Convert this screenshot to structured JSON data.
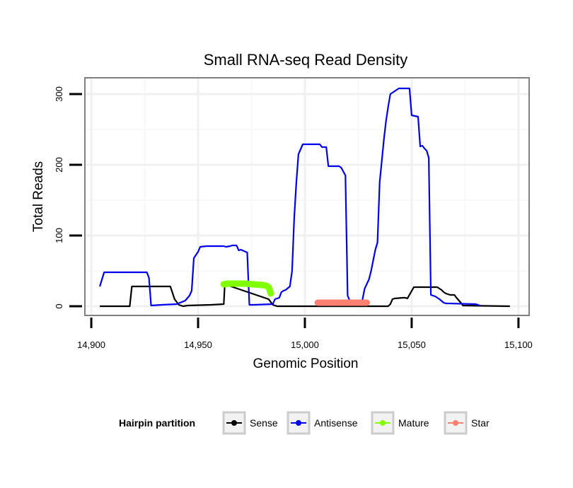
{
  "chart_data": {
    "type": "line",
    "title": "Small RNA-seq Read Density",
    "xlabel": "Genomic Position",
    "ylabel": "Total Reads",
    "xlim": [
      14897,
      15105
    ],
    "ylim": [
      -13,
      323
    ],
    "x_ticks": [
      14900,
      14950,
      15000,
      15050,
      15100
    ],
    "x_tick_labels": [
      "14,900",
      "14,950",
      "15,000",
      "15,050",
      "15,100"
    ],
    "y_ticks": [
      0,
      100,
      200,
      300
    ],
    "y_tick_labels": [
      "0",
      "100",
      "200",
      "300"
    ],
    "grid": true,
    "legend": {
      "title": "Hairpin partition",
      "position": "bottom",
      "entries": [
        {
          "name": "Sense",
          "color": "#000000"
        },
        {
          "name": "Antisense",
          "color": "#0000ee"
        },
        {
          "name": "Mature",
          "color": "#7fff00"
        },
        {
          "name": "Star",
          "color": "#fa8072"
        }
      ]
    },
    "series": [
      {
        "name": "Sense",
        "color": "#000000",
        "style": "line",
        "x": [
          14904,
          14918,
          14919,
          14923,
          14937,
          14939,
          14941,
          14943,
          14945,
          14956,
          14962,
          14962.5,
          14983,
          14985,
          14987,
          15030,
          15032,
          15039,
          15040,
          15041,
          15042,
          15046,
          15047,
          15048,
          15051,
          15062,
          15063,
          15064,
          15065,
          15066,
          15067,
          15068,
          15069,
          15070,
          15071,
          15073,
          15074,
          15096
        ],
        "y": [
          0,
          0,
          28,
          28,
          28,
          10,
          2,
          0,
          1,
          2,
          3,
          31,
          10,
          2,
          0,
          0,
          0,
          0,
          3,
          10,
          11,
          12,
          12,
          11,
          27,
          27,
          25,
          23,
          20,
          18,
          17,
          16,
          16,
          16,
          12,
          5,
          1,
          0
        ]
      },
      {
        "name": "Antisense",
        "color": "#0000ee",
        "style": "line",
        "x": [
          14904,
          14906,
          14926,
          14927,
          14928,
          14933,
          14940,
          14944,
          14946,
          14947,
          14948,
          14950,
          14951,
          14954,
          14962,
          14963,
          14965,
          14966,
          14968,
          14969,
          14970,
          14973,
          14974,
          14976,
          14985,
          14986,
          14988,
          14989,
          14990,
          14991,
          14993,
          14994,
          14995,
          14996,
          14997,
          14999,
          15007,
          15008,
          15010,
          15011,
          15016,
          15017,
          15019,
          15020,
          15021,
          15022,
          15024,
          15026,
          15027,
          15028,
          15030,
          15031,
          15033,
          15034,
          15035,
          15037,
          15038,
          15039,
          15040,
          15041,
          15044,
          15048,
          15049,
          15050,
          15053,
          15054,
          15055,
          15056,
          15057,
          15058,
          15059,
          15060,
          15061,
          15062,
          15063,
          15065,
          15066,
          15067,
          15080,
          15082
        ],
        "y": [
          28,
          48,
          48,
          40,
          1,
          2,
          3,
          8,
          15,
          22,
          68,
          77,
          84,
          85,
          85,
          84,
          85,
          86,
          86,
          79,
          80,
          76,
          2,
          2,
          3,
          10,
          12,
          20,
          22,
          23,
          28,
          50,
          125,
          175,
          215,
          229,
          229,
          225,
          225,
          198,
          198,
          196,
          185,
          15,
          8,
          3,
          2,
          3,
          10,
          25,
          38,
          50,
          80,
          90,
          175,
          236,
          262,
          282,
          300,
          302,
          308,
          308,
          308,
          270,
          268,
          226,
          227,
          223,
          220,
          210,
          16,
          15,
          14,
          12,
          10,
          5,
          4,
          4,
          3,
          1
        ]
      },
      {
        "name": "Mature",
        "color": "#7fff00",
        "style": "thick",
        "x": [
          14962,
          14964,
          14968,
          14972,
          14976,
          14980,
          14982,
          14983,
          14983.5,
          14984
        ],
        "y": [
          31,
          32,
          32,
          32,
          31,
          30,
          29,
          27,
          23,
          18
        ]
      },
      {
        "name": "Star",
        "color": "#fa8072",
        "style": "thick",
        "x": [
          15006,
          15029
        ],
        "y": [
          5,
          5
        ]
      }
    ]
  }
}
